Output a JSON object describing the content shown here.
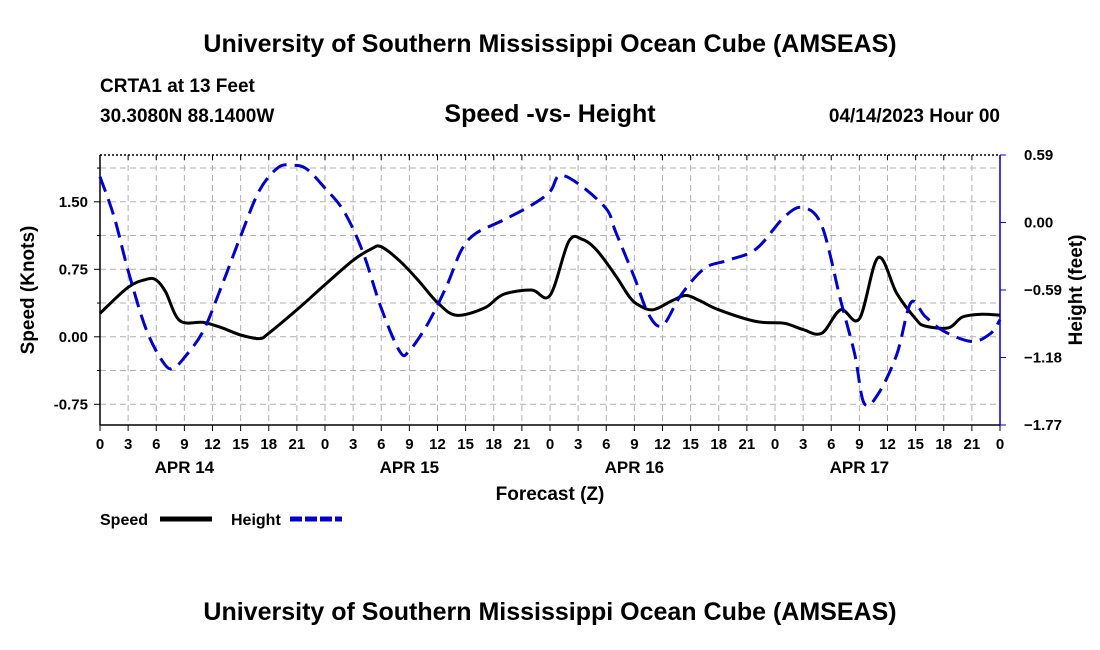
{
  "page": {
    "title_top": "University of Southern Mississippi Ocean Cube (AMSEAS)",
    "title_bottom": "University of Southern Mississippi Ocean Cube (AMSEAS)",
    "station": "CRTA1 at 13 Feet",
    "coordinates": "30.3080N  88.1400W",
    "subtitle": "Speed -vs- Height",
    "datetime": "04/14/2023 Hour 00"
  },
  "chart_data": {
    "type": "line",
    "title": "Speed -vs- Height",
    "xlabel": "Forecast (Z)",
    "ylabel_left": "Speed (Knots)",
    "ylabel_right": "Height (feet)",
    "x_range": [
      0,
      96
    ],
    "x_ticks": [
      0,
      3,
      6,
      9,
      12,
      15,
      18,
      21,
      24,
      27,
      30,
      33,
      36,
      39,
      42,
      45,
      48,
      51,
      54,
      57,
      60,
      63,
      66,
      69,
      72,
      75,
      78,
      81,
      84,
      87,
      90,
      93,
      96
    ],
    "x_tick_labels": [
      "0",
      "3",
      "6",
      "9",
      "12",
      "15",
      "18",
      "21",
      "0",
      "3",
      "6",
      "9",
      "12",
      "15",
      "18",
      "21",
      "0",
      "3",
      "6",
      "9",
      "12",
      "15",
      "18",
      "21",
      "0",
      "3",
      "6",
      "9",
      "12",
      "15",
      "18",
      "21",
      "0"
    ],
    "day_labels": [
      {
        "label": "APR 14",
        "x": 9
      },
      {
        "label": "APR 15",
        "x": 33
      },
      {
        "label": "APR 16",
        "x": 57
      },
      {
        "label": "APR 17",
        "x": 81
      }
    ],
    "ylim_left": [
      -0.98,
      2.02
    ],
    "yticks_left": [
      1.5,
      0.75,
      0.0,
      -0.75
    ],
    "ytick_labels_left": [
      "1.50",
      "0.75",
      "0.00",
      "-0.75"
    ],
    "ylim_right": [
      -1.77,
      0.59
    ],
    "yticks_right": [
      0.59,
      0.0,
      -0.59,
      -1.18,
      -1.77
    ],
    "ytick_labels_right": [
      "0.59",
      "0.00",
      "−0.59",
      "−1.18",
      "−1.77"
    ],
    "grid": true,
    "legend": {
      "position": "bottom-left",
      "entries": [
        "Speed",
        "Height"
      ]
    },
    "series": [
      {
        "name": "Speed",
        "axis": "left",
        "color": "#000000",
        "style": "solid",
        "x": [
          0,
          3,
          5,
          6,
          7,
          8.5,
          11,
          13,
          15,
          17,
          18,
          21,
          24,
          27,
          29,
          30,
          32,
          34,
          36,
          38,
          41,
          43,
          46,
          48,
          50,
          51.5,
          53,
          55,
          56.5,
          57.5,
          59,
          61,
          62.5,
          64,
          66,
          70,
          73,
          75,
          77,
          79,
          81,
          83,
          85,
          87,
          88,
          90.5,
          92,
          94,
          96
        ],
        "y": [
          0.26,
          0.55,
          0.64,
          0.63,
          0.5,
          0.18,
          0.16,
          0.1,
          0.02,
          -0.02,
          0.04,
          0.3,
          0.58,
          0.85,
          0.98,
          1.0,
          0.84,
          0.62,
          0.38,
          0.24,
          0.32,
          0.47,
          0.52,
          0.46,
          1.06,
          1.08,
          0.96,
          0.68,
          0.44,
          0.35,
          0.3,
          0.4,
          0.46,
          0.4,
          0.3,
          0.17,
          0.15,
          0.08,
          0.04,
          0.3,
          0.2,
          0.88,
          0.48,
          0.2,
          0.12,
          0.1,
          0.22,
          0.25,
          0.24
        ]
      },
      {
        "name": "Height",
        "axis": "right",
        "color": "#0000cc",
        "style": "dashed",
        "x": [
          0,
          1.5,
          3,
          5,
          7,
          8,
          9,
          11,
          13,
          15,
          17,
          19,
          20.5,
          22,
          24,
          26,
          28,
          30,
          32,
          33,
          35,
          37,
          38.5,
          40,
          43,
          46,
          48,
          49,
          51,
          54,
          55,
          57,
          58.5,
          60,
          62,
          64.5,
          67,
          70,
          73,
          75,
          77,
          79,
          80.5,
          81.5,
          83,
          85,
          86.5,
          88,
          90,
          93,
          95,
          96
        ],
        "y": [
          0.4,
          0.05,
          -0.42,
          -0.95,
          -1.25,
          -1.26,
          -1.18,
          -0.95,
          -0.55,
          -0.12,
          0.28,
          0.48,
          0.5,
          0.47,
          0.3,
          0.1,
          -0.25,
          -0.75,
          -1.13,
          -1.12,
          -0.88,
          -0.55,
          -0.25,
          -0.1,
          0.02,
          0.15,
          0.27,
          0.41,
          0.34,
          0.12,
          -0.08,
          -0.48,
          -0.8,
          -0.9,
          -0.63,
          -0.4,
          -0.33,
          -0.23,
          0.05,
          0.13,
          -0.03,
          -0.68,
          -1.15,
          -1.58,
          -1.5,
          -1.15,
          -0.7,
          -0.82,
          -0.95,
          -1.04,
          -0.97,
          -0.85
        ]
      }
    ]
  }
}
